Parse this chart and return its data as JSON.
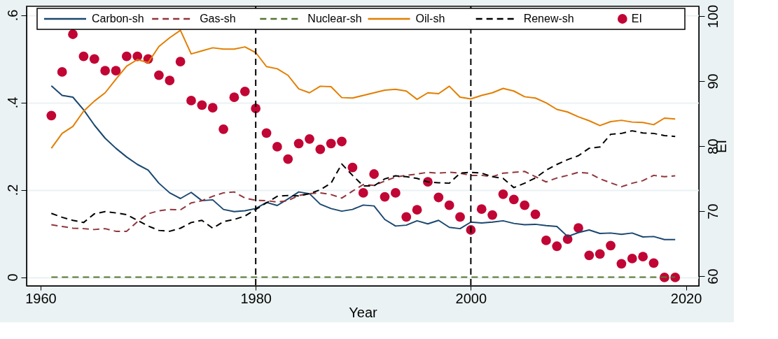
{
  "chart_data": {
    "type": "line",
    "xlabel": "Year",
    "y2label": "EI",
    "x": [
      1961,
      1962,
      1963,
      1964,
      1965,
      1966,
      1967,
      1968,
      1969,
      1970,
      1971,
      1972,
      1973,
      1974,
      1975,
      1976,
      1977,
      1978,
      1979,
      1980,
      1981,
      1982,
      1983,
      1984,
      1985,
      1986,
      1987,
      1988,
      1989,
      1990,
      1991,
      1992,
      1993,
      1994,
      1995,
      1996,
      1997,
      1998,
      1999,
      2000,
      2001,
      2002,
      2003,
      2004,
      2005,
      2006,
      2007,
      2008,
      2009,
      2010,
      2011,
      2012,
      2013,
      2014,
      2015,
      2016,
      2017,
      2018,
      2019
    ],
    "xlim": [
      1958.7,
      2021.2
    ],
    "xticks": [
      1960,
      1980,
      2000,
      2020
    ],
    "ylim": [
      -0.02,
      0.62
    ],
    "yticks": [
      {
        "value": 0,
        "label": "0"
      },
      {
        "value": 0.2,
        "label": ".2"
      },
      {
        "value": 0.4,
        "label": ".4"
      },
      {
        "value": 0.6,
        "label": ".6"
      }
    ],
    "y2lim": [
      58.5,
      101.5
    ],
    "y2ticks": [
      60,
      70,
      80,
      90,
      100
    ],
    "grid": "y",
    "legend": "top",
    "ref_lines": [
      {
        "axis": "x",
        "value": 1980,
        "color": "#000000",
        "line_style": "dashed"
      },
      {
        "axis": "x",
        "value": 2000,
        "color": "#000000",
        "line_style": "dashed"
      }
    ],
    "series": [
      {
        "name": "Carbon-sh",
        "line_style": "solid",
        "color": "#1a476f",
        "values": [
          0.438,
          0.416,
          0.412,
          0.383,
          0.348,
          0.318,
          0.295,
          0.275,
          0.258,
          0.245,
          0.215,
          0.193,
          0.18,
          0.194,
          0.175,
          0.177,
          0.155,
          0.15,
          0.152,
          0.157,
          0.171,
          0.164,
          0.179,
          0.195,
          0.191,
          0.167,
          0.157,
          0.151,
          0.155,
          0.165,
          0.163,
          0.132,
          0.117,
          0.119,
          0.129,
          0.122,
          0.13,
          0.114,
          0.111,
          0.126,
          0.124,
          0.126,
          0.129,
          0.123,
          0.12,
          0.121,
          0.118,
          0.116,
          0.093,
          0.102,
          0.108,
          0.1,
          0.101,
          0.098,
          0.101,
          0.092,
          0.093,
          0.086,
          0.086
        ]
      },
      {
        "name": "Gas-sh",
        "line_style": "dashed",
        "color": "#90353b",
        "values": [
          0.12,
          0.116,
          0.112,
          0.111,
          0.109,
          0.111,
          0.105,
          0.105,
          0.127,
          0.145,
          0.152,
          0.155,
          0.154,
          0.17,
          0.175,
          0.185,
          0.193,
          0.195,
          0.181,
          0.176,
          0.175,
          0.172,
          0.175,
          0.187,
          0.191,
          0.193,
          0.189,
          0.181,
          0.197,
          0.212,
          0.21,
          0.22,
          0.229,
          0.233,
          0.236,
          0.24,
          0.238,
          0.24,
          0.238,
          0.233,
          0.233,
          0.23,
          0.238,
          0.24,
          0.242,
          0.23,
          0.218,
          0.227,
          0.233,
          0.24,
          0.238,
          0.225,
          0.216,
          0.207,
          0.215,
          0.221,
          0.233,
          0.23,
          0.232
        ]
      },
      {
        "name": "Nuclear-sh",
        "line_style": "dashed",
        "color": "#55752f",
        "values": [
          0,
          0,
          0,
          0,
          0,
          0,
          0,
          0,
          0,
          0,
          0,
          0,
          0,
          0,
          0,
          0,
          0,
          0,
          0,
          0,
          0,
          0,
          0,
          0,
          0,
          0,
          0,
          0,
          0,
          0,
          0,
          0,
          0,
          0,
          0,
          0,
          0,
          0,
          0,
          0,
          0,
          0,
          0,
          0,
          0,
          0,
          0,
          0,
          0,
          0,
          0,
          0,
          0,
          0,
          0,
          0,
          0,
          0,
          0
        ]
      },
      {
        "name": "Oil-sh",
        "line_style": "solid",
        "color": "#e37e00",
        "values": [
          0.295,
          0.329,
          0.345,
          0.38,
          0.403,
          0.422,
          0.453,
          0.483,
          0.498,
          0.491,
          0.528,
          0.548,
          0.565,
          0.511,
          0.518,
          0.525,
          0.522,
          0.522,
          0.527,
          0.514,
          0.482,
          0.477,
          0.462,
          0.431,
          0.422,
          0.437,
          0.436,
          0.411,
          0.41,
          0.416,
          0.422,
          0.428,
          0.43,
          0.426,
          0.407,
          0.422,
          0.42,
          0.437,
          0.412,
          0.408,
          0.416,
          0.422,
          0.432,
          0.426,
          0.413,
          0.41,
          0.399,
          0.384,
          0.378,
          0.367,
          0.358,
          0.347,
          0.356,
          0.359,
          0.355,
          0.354,
          0.349,
          0.364,
          0.362
        ]
      },
      {
        "name": "Renew-sh",
        "line_style": "dashed",
        "color": "#000000",
        "values": [
          0.146,
          0.137,
          0.13,
          0.125,
          0.145,
          0.15,
          0.147,
          0.143,
          0.13,
          0.117,
          0.107,
          0.105,
          0.112,
          0.125,
          0.13,
          0.112,
          0.127,
          0.132,
          0.14,
          0.155,
          0.17,
          0.185,
          0.187,
          0.186,
          0.191,
          0.2,
          0.215,
          0.259,
          0.233,
          0.209,
          0.209,
          0.225,
          0.232,
          0.23,
          0.226,
          0.218,
          0.216,
          0.215,
          0.238,
          0.24,
          0.238,
          0.23,
          0.226,
          0.205,
          0.215,
          0.227,
          0.245,
          0.258,
          0.269,
          0.278,
          0.295,
          0.298,
          0.327,
          0.329,
          0.335,
          0.33,
          0.329,
          0.324,
          0.322
        ]
      },
      {
        "name": "EI",
        "type": "scatter",
        "marker": "circle",
        "axis": "y2",
        "color": "#c10534",
        "values": [
          84.7,
          91.4,
          97.2,
          93.8,
          93.4,
          91.6,
          91.6,
          93.8,
          93.8,
          93.4,
          90.9,
          90.1,
          93.0,
          87.0,
          86.3,
          85.9,
          82.6,
          87.5,
          88.4,
          85.8,
          82.0,
          79.9,
          78.0,
          80.4,
          81.1,
          79.5,
          80.4,
          80.7,
          76.7,
          72.8,
          75.7,
          72.2,
          72.8,
          69.1,
          70.2,
          74.5,
          72.1,
          70.9,
          69.1,
          67.1,
          70.3,
          69.4,
          72.6,
          71.8,
          70.9,
          69.5,
          65.5,
          64.6,
          65.7,
          67.4,
          63.2,
          63.4,
          64.7,
          61.9,
          62.7,
          63.0,
          62.0,
          59.8,
          59.8
        ]
      }
    ]
  }
}
